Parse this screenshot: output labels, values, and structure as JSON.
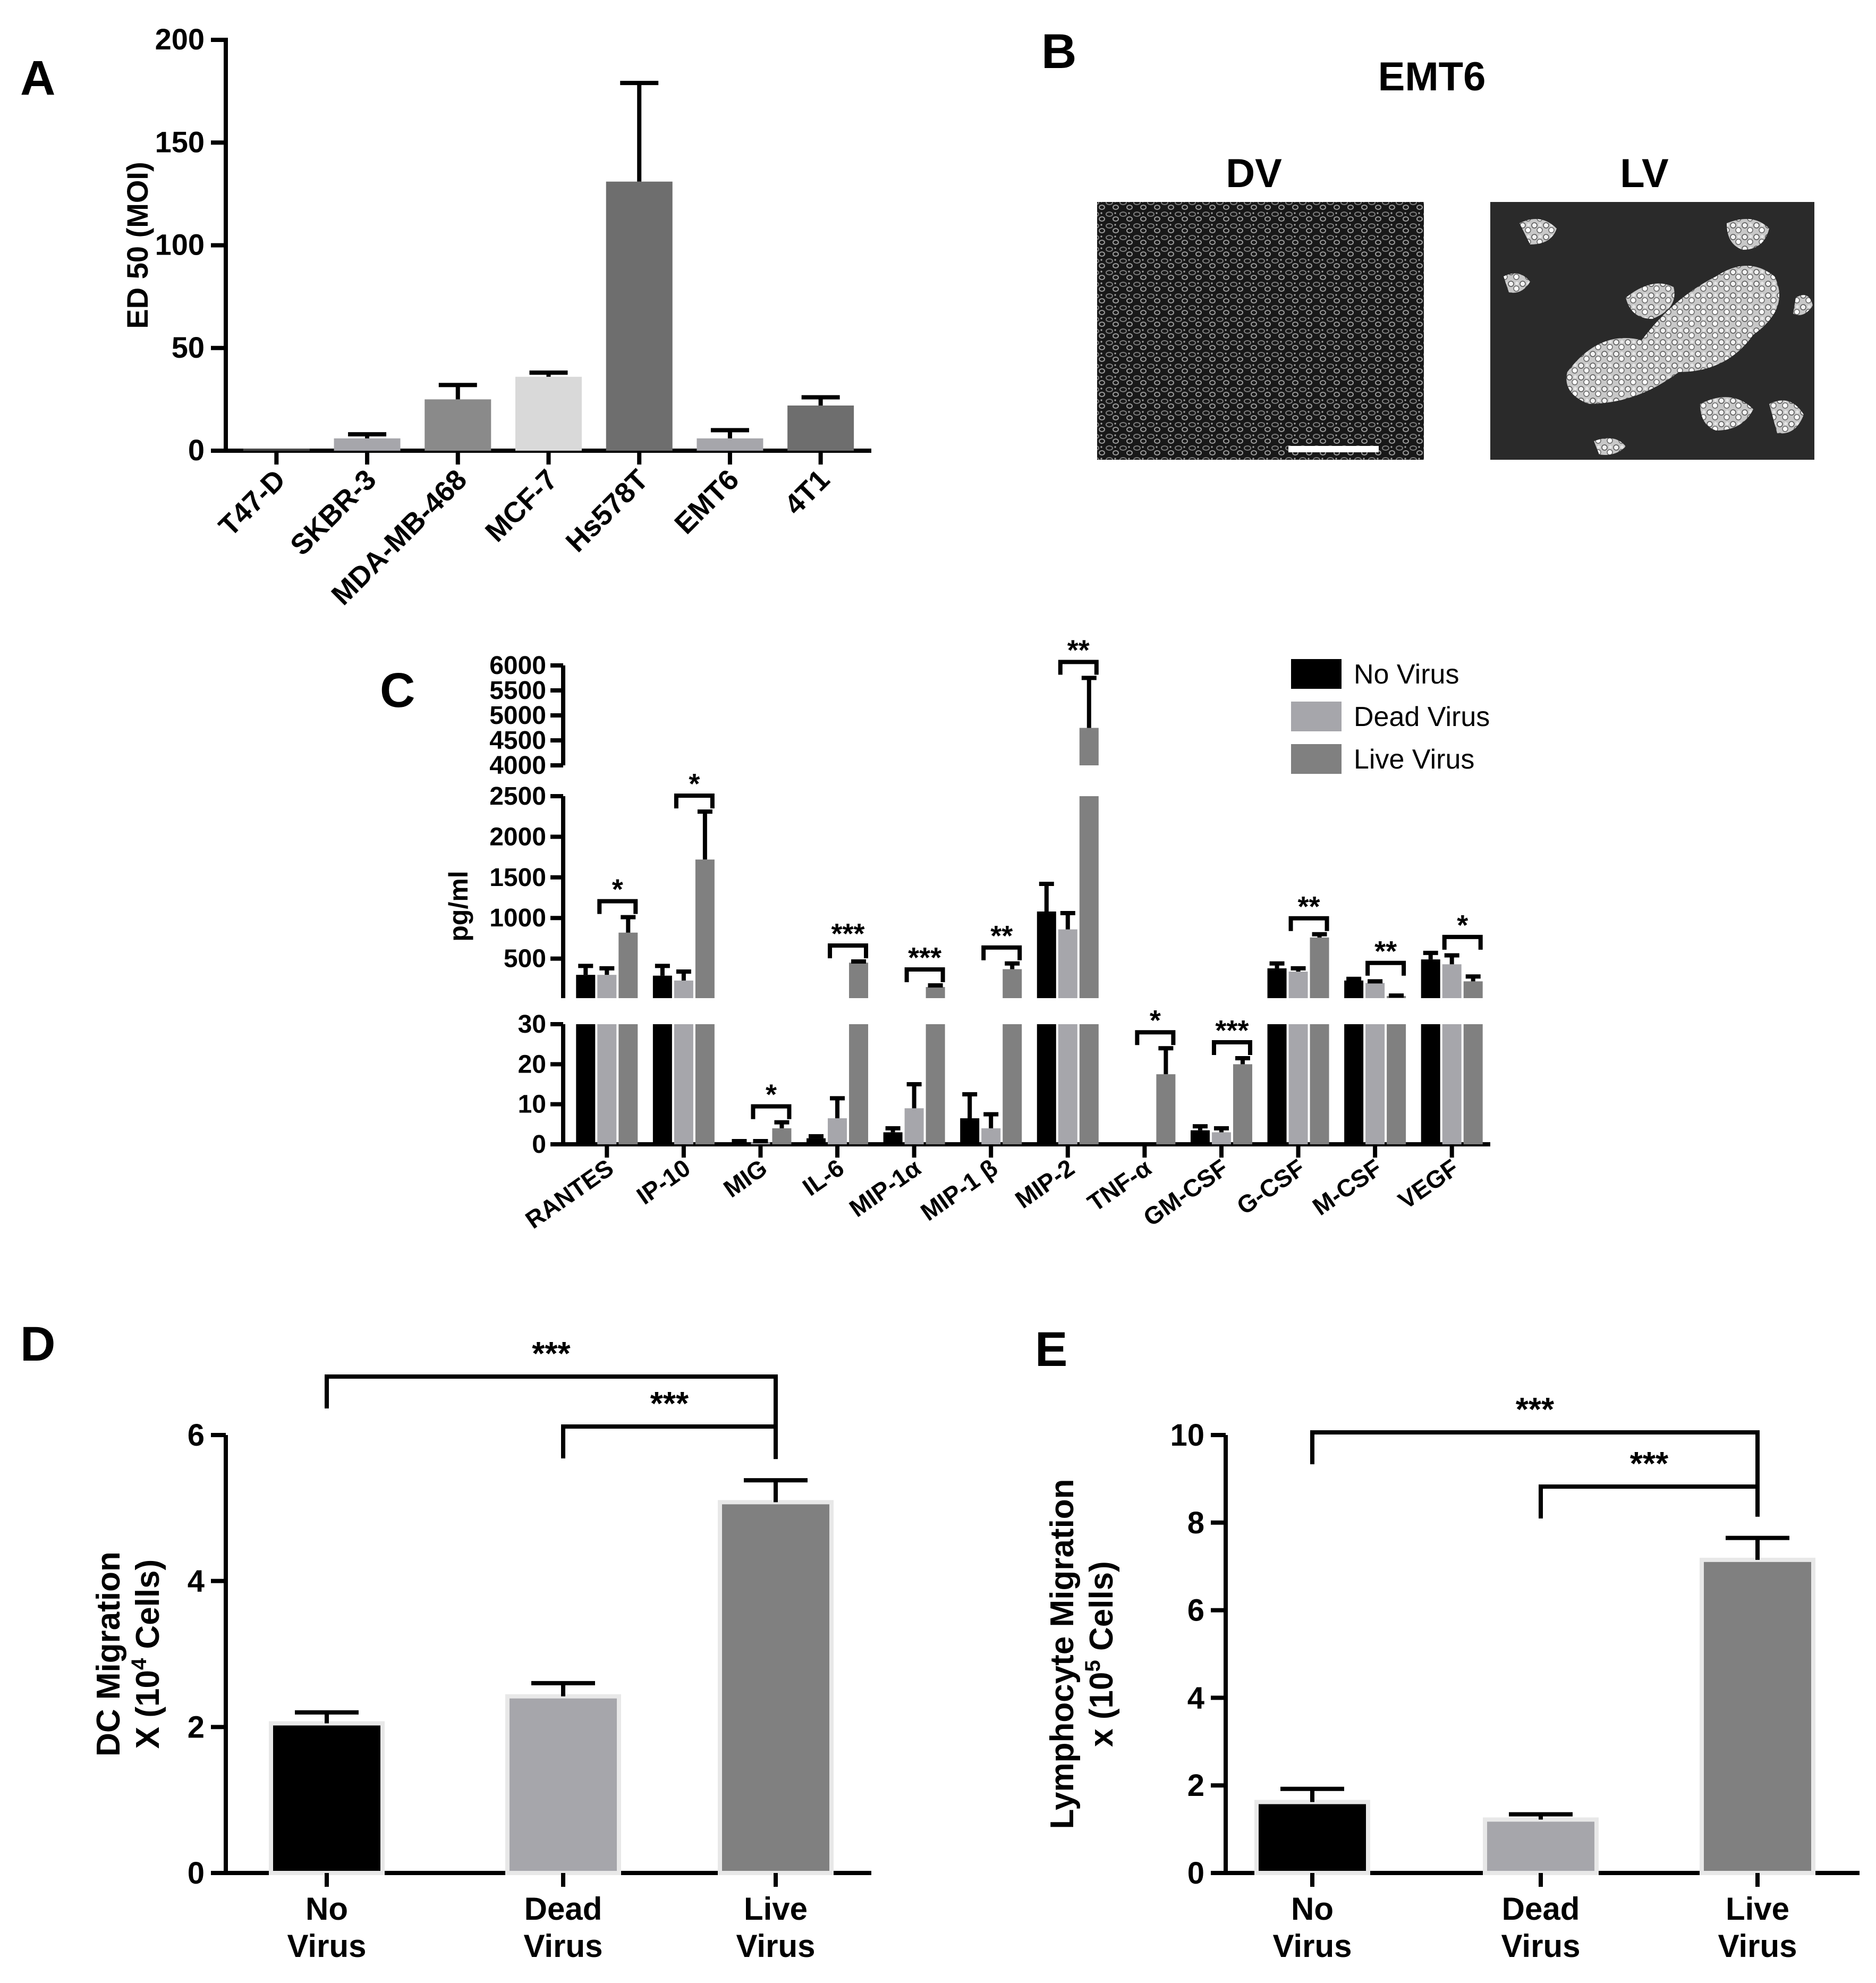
{
  "panel_letters": {
    "a": "A",
    "b": "B",
    "c": "C",
    "d": "D",
    "e": "E"
  },
  "colors": {
    "no_virus": "#000000",
    "dead_virus": "#a6a6ab",
    "live_virus": "#808080"
  },
  "panel_b": {
    "title": "EMT6",
    "image_left_label": "DV",
    "image_right_label": "LV",
    "image_description_icon": "micrograph-image"
  },
  "chart_data": [
    {
      "panel": "A",
      "type": "bar",
      "ylabel": "ED 50 (MOI)",
      "ylim": [
        0,
        200
      ],
      "yticks": [
        "0",
        "50",
        "100",
        "150",
        "200"
      ],
      "categories": [
        "T47-D",
        "SKBR-3",
        "MDA-MB-468",
        "MCF-7",
        "Hs578T",
        "EMT6",
        "4T1"
      ],
      "values": [
        1,
        6,
        25,
        36,
        131,
        6,
        22
      ],
      "errors": [
        0,
        2,
        7,
        2,
        48,
        4,
        4
      ],
      "bar_colors": [
        "#4a4a4a",
        "#a6a6ab",
        "#8a8a8a",
        "#d9d9d9",
        "#6e6e6e",
        "#a6a6ab",
        "#6e6e6e"
      ]
    },
    {
      "panel": "C",
      "type": "bar",
      "ylabel": "pg/ml",
      "legend": [
        "No Virus",
        "Dead Virus",
        "Live Virus"
      ],
      "legend_position": "top-right",
      "yticks_top": [
        "4000",
        "4500",
        "5000",
        "5500",
        "6000"
      ],
      "yticks_mid": [
        "500",
        "1000",
        "1500",
        "2000",
        "2500"
      ],
      "yticks_low": [
        "0",
        "10",
        "20",
        "30"
      ],
      "categories": [
        "RANTES",
        "IP-10",
        "MIG",
        "IL-6",
        "MIP-1α",
        "MIP-1 β",
        "MIP-2",
        "TNF-α",
        "GM-CSF",
        "G-CSF",
        "M-CSF",
        "VEGF"
      ],
      "series": [
        {
          "name": "No Virus",
          "values": [
            300,
            290,
            0.5,
            1.5,
            3,
            6.5,
            1080,
            0,
            3.5,
            380,
            230,
            490
          ],
          "errors": [
            110,
            120,
            0.3,
            0.5,
            1,
            6,
            340,
            0,
            1,
            60,
            20,
            80
          ]
        },
        {
          "name": "Dead Virus",
          "values": [
            300,
            230,
            0.5,
            6.5,
            9,
            4,
            860,
            0,
            3,
            340,
            200,
            430
          ],
          "errors": [
            80,
            110,
            0.3,
            5,
            6,
            3.5,
            200,
            0,
            1,
            40,
            20,
            110
          ]
        },
        {
          "name": "Live Virus",
          "values": [
            820,
            1720,
            4,
            450,
            150,
            370,
            4750,
            17.5,
            20,
            760,
            40,
            220
          ],
          "errors": [
            190,
            590,
            1.5,
            15,
            20,
            70,
            1000,
            6.5,
            1.5,
            40,
            5,
            60
          ]
        }
      ],
      "significance": [
        "*",
        "*",
        "*",
        "***",
        "***",
        "**",
        "**",
        "*",
        "***",
        "**",
        "**",
        "*"
      ]
    },
    {
      "panel": "D",
      "type": "bar",
      "ylabel_line1": "DC Migration",
      "ylabel_line2_pre": "X (10",
      "ylabel_line2_sup": "4",
      "ylabel_line2_post": " Cells)",
      "ylim": [
        0,
        6
      ],
      "yticks": [
        "0",
        "2",
        "4",
        "6"
      ],
      "categories": [
        [
          "No",
          "Virus"
        ],
        [
          "Dead",
          "Virus"
        ],
        [
          "Live",
          "Virus"
        ]
      ],
      "values": [
        2.05,
        2.42,
        5.08
      ],
      "errors": [
        0.15,
        0.18,
        0.3
      ],
      "significance": [
        {
          "label": "***",
          "from": 0,
          "to": 2
        },
        {
          "label": "***",
          "from": 1,
          "to": 2
        }
      ]
    },
    {
      "panel": "E",
      "type": "bar",
      "ylabel_line1": "Lymphocyte Migration",
      "ylabel_line2_pre": "x (10",
      "ylabel_line2_sup": "5",
      "ylabel_line2_post": " Cells)",
      "ylim": [
        0,
        10
      ],
      "yticks": [
        "0",
        "2",
        "4",
        "6",
        "8",
        "10"
      ],
      "categories": [
        [
          "No",
          "Virus"
        ],
        [
          "Dead",
          "Virus"
        ],
        [
          "Live",
          "Virus"
        ]
      ],
      "values": [
        1.62,
        1.22,
        7.15
      ],
      "errors": [
        0.3,
        0.12,
        0.5
      ],
      "significance": [
        {
          "label": "***",
          "from": 0,
          "to": 2
        },
        {
          "label": "***",
          "from": 1,
          "to": 2
        }
      ]
    }
  ]
}
